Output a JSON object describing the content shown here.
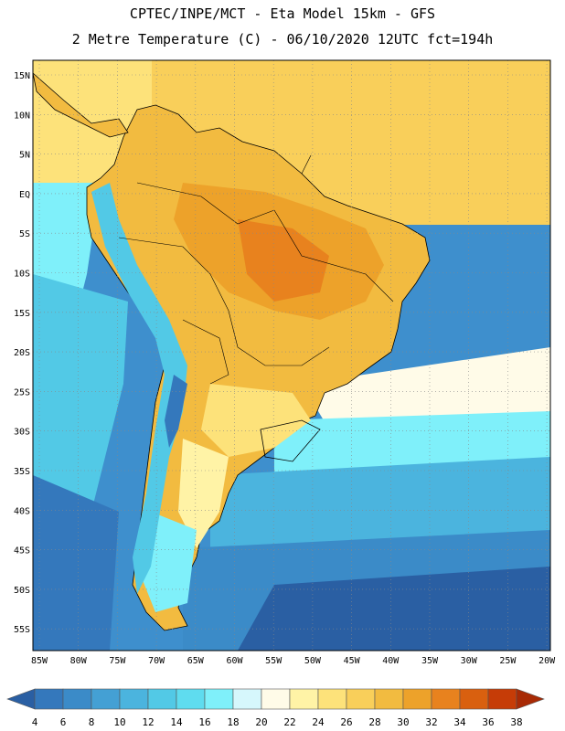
{
  "header": {
    "line1": "CPTEC/INPE/MCT -  Eta Model 15km - GFS",
    "line2": "2 Metre Temperature (C) - 06/10/2020 12UTC fct=194h"
  },
  "map": {
    "lon_ticks": [
      "85W",
      "80W",
      "75W",
      "70W",
      "65W",
      "60W",
      "55W",
      "50W",
      "45W",
      "40W",
      "35W",
      "30W",
      "25W",
      "20W"
    ],
    "lat_ticks": [
      "15N",
      "10N",
      "5N",
      "EQ",
      "5S",
      "10S",
      "15S",
      "20S",
      "25S",
      "30S",
      "35S",
      "40S",
      "45S",
      "50S",
      "55S"
    ],
    "lon_range": [
      -86,
      -19
    ],
    "lat_range": [
      17,
      -58
    ],
    "ocean_regions": [
      {
        "name": "tropical-atlantic",
        "value_c": 27
      },
      {
        "name": "tropical-pacific",
        "value_c": 16
      },
      {
        "name": "south-pacific-coast",
        "value_c": 14
      },
      {
        "name": "south-pacific-open",
        "value_c": 10
      },
      {
        "name": "south-atlantic-mid",
        "value_c": 17
      },
      {
        "name": "south-atlantic-far",
        "value_c": 8
      }
    ],
    "land_regions": [
      {
        "name": "amazon-central",
        "value_c": 32
      },
      {
        "name": "brazil-interior",
        "value_c": 33
      },
      {
        "name": "andes",
        "value_c": 10
      },
      {
        "name": "patagonia",
        "value_c": 16
      },
      {
        "name": "southern-cone",
        "value_c": 22
      }
    ]
  },
  "colorbar": {
    "labels": [
      "4",
      "6",
      "8",
      "10",
      "12",
      "14",
      "16",
      "18",
      "20",
      "22",
      "24",
      "26",
      "28",
      "30",
      "32",
      "34",
      "36",
      "38"
    ],
    "colors": [
      "#2a5fa3",
      "#3478bc",
      "#3b8bc8",
      "#44a0d4",
      "#4bb4de",
      "#52c9e6",
      "#5fdcef",
      "#7ff0fa",
      "#d6f7fc",
      "#fffbe8",
      "#fff3a6",
      "#fde27a",
      "#f9cf5a",
      "#f2bb40",
      "#eda22a",
      "#e8821e",
      "#d9600f",
      "#c63c07",
      "#a82a05"
    ]
  }
}
